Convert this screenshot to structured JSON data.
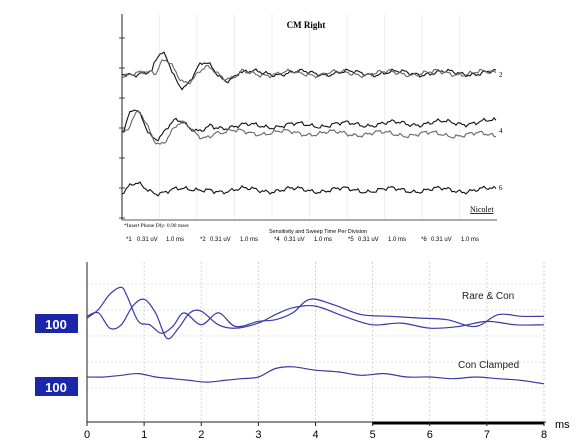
{
  "chart_data": [
    {
      "type": "line",
      "title": "CM Right",
      "brand": "Nicolet",
      "phase_note": "*Insert Phone Dly: 0.90 msec",
      "scale_caption": "Sensitivity and Sweep Time Per Division",
      "trace_labels": [
        "2",
        "4",
        "6"
      ],
      "settings": [
        {
          "channel": "*1",
          "sensitivity": "0.31 uV",
          "sweep": "1.0 ms"
        },
        {
          "channel": "*2",
          "sensitivity": "0.31 uV",
          "sweep": "1.0 ms"
        },
        {
          "channel": "*4",
          "sensitivity": "0.31 uV",
          "sweep": "1.0 ms"
        },
        {
          "channel": "*5",
          "sensitivity": "0.31 uV",
          "sweep": "1.0 ms"
        },
        {
          "channel": "*6",
          "sensitivity": "0.31 uV",
          "sweep": "1.0 ms"
        }
      ],
      "grid": true,
      "colors": {
        "trace_dark": "#111111",
        "trace_gray": "#666666"
      }
    },
    {
      "type": "line",
      "x_unit": "ms",
      "xlim": [
        0,
        8
      ],
      "x_ticks": [
        0,
        1,
        2,
        3,
        4,
        5,
        6,
        7,
        8
      ],
      "grid": true,
      "series_labels": [
        "Rare & Con",
        "Con Clamped"
      ],
      "channel_badges": [
        "100",
        "100"
      ],
      "colors": {
        "trace": "#3a3aa8",
        "badge": "#1a27a6",
        "grid": "#c8c8c8"
      },
      "series": [
        {
          "name": "Rare & Con (trace A)",
          "x": [
            0,
            0.2,
            0.4,
            0.6,
            0.7,
            0.9,
            1.1,
            1.3,
            1.5,
            1.7,
            2.0,
            2.3,
            2.6,
            3.0,
            3.3,
            3.6,
            3.9,
            4.3,
            4.8,
            5.3,
            5.8,
            6.3,
            6.8,
            7.2,
            7.6,
            8.0
          ],
          "y": [
            0.0,
            0.5,
            1.4,
            1.8,
            1.3,
            -0.2,
            -0.4,
            -0.9,
            -0.5,
            0.3,
            -0.4,
            0.3,
            -0.5,
            -0.2,
            -0.1,
            0.3,
            1.1,
            0.8,
            0.2,
            0.1,
            0.0,
            -0.1,
            -0.5,
            0.2,
            0.1,
            0.1
          ]
        },
        {
          "name": "Rare & Con (trace B)",
          "x": [
            0,
            0.2,
            0.4,
            0.6,
            0.8,
            1.0,
            1.2,
            1.4,
            1.6,
            1.8,
            2.0,
            2.3,
            2.6,
            3.0,
            3.3,
            3.6,
            4.0,
            4.5,
            5.0,
            5.5,
            6.0,
            6.5,
            7.0,
            7.5,
            8.0
          ],
          "y": [
            0.1,
            0.3,
            -0.6,
            -0.4,
            0.7,
            1.1,
            0.3,
            -1.2,
            -0.6,
            0.3,
            0.4,
            -0.4,
            -0.6,
            -0.3,
            0.2,
            0.6,
            0.7,
            0.1,
            -0.4,
            -0.3,
            -0.6,
            -0.5,
            -0.2,
            -0.4,
            -0.4
          ]
        },
        {
          "name": "Con Clamped",
          "x": [
            0,
            0.3,
            0.6,
            0.9,
            1.2,
            1.5,
            1.8,
            2.1,
            2.4,
            2.7,
            3.0,
            3.3,
            3.6,
            4.0,
            4.4,
            4.8,
            5.2,
            5.6,
            6.0,
            6.4,
            6.8,
            7.2,
            7.6,
            8.0
          ],
          "y": [
            0.0,
            0.0,
            0.1,
            0.2,
            0.0,
            -0.1,
            -0.2,
            -0.3,
            -0.2,
            -0.1,
            0.0,
            0.5,
            0.6,
            0.4,
            0.3,
            0.1,
            0.2,
            0.0,
            0.0,
            -0.1,
            0.0,
            -0.1,
            -0.2,
            -0.4
          ]
        }
      ]
    }
  ]
}
